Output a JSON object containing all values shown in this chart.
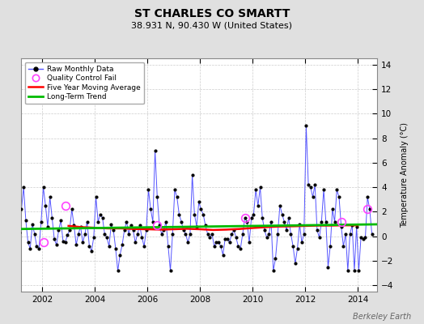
{
  "title_line1": "ST CHARLES CO SMARTT",
  "title_line2": "38.931 N, 90.430 W (United States)",
  "ylabel_right": "Temperature Anomaly (°C)",
  "watermark": "Berkeley Earth",
  "xlim": [
    2001.2,
    2014.75
  ],
  "ylim": [
    -4.5,
    14.5
  ],
  "yticks": [
    -4,
    -2,
    0,
    2,
    4,
    6,
    8,
    10,
    12,
    14
  ],
  "xticks": [
    2002,
    2004,
    2006,
    2008,
    2010,
    2012,
    2014
  ],
  "bg_color": "#e0e0e0",
  "plot_bg_color": "#ffffff",
  "raw_color": "#5555ff",
  "raw_dot_color": "#000000",
  "qc_fail_color": "#ff44ff",
  "moving_avg_color": "#ff0000",
  "trend_color": "#00bb00",
  "raw_data_x": [
    2001.042,
    2001.125,
    2001.208,
    2001.292,
    2001.375,
    2001.458,
    2001.542,
    2001.625,
    2001.708,
    2001.792,
    2001.875,
    2001.958,
    2002.042,
    2002.125,
    2002.208,
    2002.292,
    2002.375,
    2002.458,
    2002.542,
    2002.625,
    2002.708,
    2002.792,
    2002.875,
    2002.958,
    2003.042,
    2003.125,
    2003.208,
    2003.292,
    2003.375,
    2003.458,
    2003.542,
    2003.625,
    2003.708,
    2003.792,
    2003.875,
    2003.958,
    2004.042,
    2004.125,
    2004.208,
    2004.292,
    2004.375,
    2004.458,
    2004.542,
    2004.625,
    2004.708,
    2004.792,
    2004.875,
    2004.958,
    2005.042,
    2005.125,
    2005.208,
    2005.292,
    2005.375,
    2005.458,
    2005.542,
    2005.625,
    2005.708,
    2005.792,
    2005.875,
    2005.958,
    2006.042,
    2006.125,
    2006.208,
    2006.292,
    2006.375,
    2006.458,
    2006.542,
    2006.625,
    2006.708,
    2006.792,
    2006.875,
    2006.958,
    2007.042,
    2007.125,
    2007.208,
    2007.292,
    2007.375,
    2007.458,
    2007.542,
    2007.625,
    2007.708,
    2007.792,
    2007.875,
    2007.958,
    2008.042,
    2008.125,
    2008.208,
    2008.292,
    2008.375,
    2008.458,
    2008.542,
    2008.625,
    2008.708,
    2008.792,
    2008.875,
    2008.958,
    2009.042,
    2009.125,
    2009.208,
    2009.292,
    2009.375,
    2009.458,
    2009.542,
    2009.625,
    2009.708,
    2009.792,
    2009.875,
    2009.958,
    2010.042,
    2010.125,
    2010.208,
    2010.292,
    2010.375,
    2010.458,
    2010.542,
    2010.625,
    2010.708,
    2010.792,
    2010.875,
    2010.958,
    2011.042,
    2011.125,
    2011.208,
    2011.292,
    2011.375,
    2011.458,
    2011.542,
    2011.625,
    2011.708,
    2011.792,
    2011.875,
    2011.958,
    2012.042,
    2012.125,
    2012.208,
    2012.292,
    2012.375,
    2012.458,
    2012.542,
    2012.625,
    2012.708,
    2012.792,
    2012.875,
    2012.958,
    2013.042,
    2013.125,
    2013.208,
    2013.292,
    2013.375,
    2013.458,
    2013.542,
    2013.625,
    2013.708,
    2013.792,
    2013.875,
    2013.958,
    2014.042,
    2014.125,
    2014.208,
    2014.292,
    2014.375,
    2014.458,
    2014.542
  ],
  "raw_data_y": [
    1.8,
    0.3,
    2.2,
    4.0,
    1.3,
    -0.5,
    -1.0,
    1.0,
    0.2,
    -0.8,
    -1.0,
    1.2,
    4.0,
    2.5,
    0.8,
    3.2,
    1.5,
    -0.2,
    -0.7,
    0.5,
    1.3,
    -0.4,
    -0.5,
    0.1,
    0.5,
    2.2,
    0.9,
    -0.7,
    0.2,
    0.8,
    -0.5,
    0.2,
    1.2,
    -0.8,
    -1.2,
    -0.1,
    3.2,
    1.2,
    1.8,
    1.5,
    0.2,
    -0.1,
    -0.8,
    1.0,
    0.5,
    -1.0,
    -2.8,
    -1.5,
    -0.7,
    0.5,
    1.2,
    0.2,
    0.9,
    0.5,
    -0.5,
    0.2,
    0.9,
    -0.1,
    -0.8,
    0.5,
    3.8,
    2.2,
    1.2,
    7.0,
    3.2,
    0.9,
    0.2,
    0.5,
    1.2,
    -0.8,
    -2.8,
    0.2,
    3.8,
    3.2,
    1.8,
    1.2,
    0.5,
    0.2,
    -0.5,
    0.2,
    5.0,
    1.8,
    0.8,
    2.8,
    2.2,
    1.8,
    0.9,
    0.2,
    -0.1,
    0.2,
    -0.8,
    -0.5,
    -0.5,
    -0.8,
    -1.5,
    -0.2,
    -0.2,
    -0.5,
    0.2,
    0.5,
    -0.1,
    -0.8,
    -1.0,
    0.2,
    1.5,
    1.2,
    -0.5,
    1.5,
    1.8,
    3.8,
    2.5,
    4.0,
    1.5,
    0.5,
    -0.1,
    0.2,
    1.2,
    -2.8,
    -1.8,
    0.2,
    2.5,
    1.8,
    1.2,
    0.5,
    1.5,
    0.2,
    -0.8,
    -2.2,
    -1.0,
    1.0,
    -0.5,
    0.2,
    9.0,
    4.2,
    4.0,
    3.2,
    4.2,
    0.5,
    -0.1,
    1.2,
    3.8,
    1.2,
    -2.5,
    -0.8,
    2.2,
    1.2,
    3.8,
    3.2,
    0.8,
    -0.8,
    0.2,
    -2.8,
    0.2,
    0.9,
    -2.8,
    0.8,
    -2.8,
    -0.1,
    -0.2,
    -0.1,
    3.2,
    2.2,
    0.2
  ],
  "qc_fail_points": [
    [
      2002.042,
      -0.5
    ],
    [
      2002.875,
      2.5
    ],
    [
      2006.375,
      0.9
    ],
    [
      2009.708,
      1.5
    ],
    [
      2013.375,
      1.2
    ],
    [
      2014.375,
      2.2
    ]
  ],
  "moving_avg_x": [
    2003.0,
    2003.5,
    2004.0,
    2004.5,
    2005.0,
    2005.5,
    2006.0,
    2006.5,
    2007.0,
    2007.5,
    2008.0,
    2008.5,
    2009.0,
    2009.5,
    2010.0,
    2010.5,
    2011.0,
    2011.5,
    2012.0,
    2012.5,
    2013.0,
    2013.5,
    2014.0
  ],
  "moving_avg_y": [
    0.85,
    0.75,
    0.7,
    0.65,
    0.65,
    0.6,
    0.58,
    0.55,
    0.58,
    0.62,
    0.58,
    0.52,
    0.55,
    0.6,
    0.68,
    0.75,
    0.8,
    0.82,
    0.85,
    0.88,
    0.88,
    0.9,
    0.9
  ],
  "trend_x": [
    2001.2,
    2014.75
  ],
  "trend_y": [
    0.6,
    0.98
  ]
}
